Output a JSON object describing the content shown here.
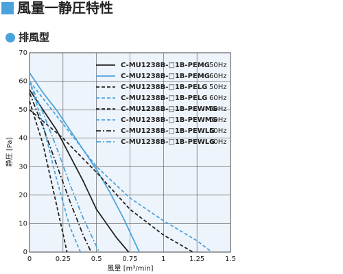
{
  "chart_data": {
    "type": "line",
    "title": "風量一静圧特性",
    "subtitle": "排風型",
    "x_label": "風量 [m³/min]",
    "y_label": "静圧 [Pa]",
    "xlim": [
      0,
      1.5
    ],
    "xticks": [
      0,
      0.25,
      0.5,
      0.75,
      1,
      1.25,
      1.5
    ],
    "ylim": [
      0,
      70
    ],
    "yticks": [
      0,
      10,
      20,
      30,
      40,
      50,
      60,
      70
    ],
    "grid": true,
    "series": [
      {
        "name": "C-MU1238B-□1B-PEMG",
        "frequency": "50Hz",
        "color": "#222222",
        "dash": "solid",
        "x": [
          0,
          0.1,
          0.2,
          0.3,
          0.4,
          0.5,
          0.65,
          0.74
        ],
        "values": [
          57,
          50,
          43,
          34,
          25,
          15,
          5,
          0
        ]
      },
      {
        "name": "C-MU1238B-□1B-PEMG",
        "frequency": "60Hz",
        "color": "#4ba3dc",
        "dash": "solid",
        "x": [
          0,
          0.1,
          0.2,
          0.3,
          0.4,
          0.5,
          0.6,
          0.7,
          0.82
        ],
        "values": [
          63,
          56,
          50,
          43,
          36,
          29,
          21,
          12,
          0
        ]
      },
      {
        "name": "C-MU1238B-□1B-PELG",
        "frequency": "50Hz",
        "color": "#222222",
        "dash": "dashed",
        "x": [
          0,
          0.1,
          0.2,
          0.28
        ],
        "values": [
          53,
          38,
          17,
          0
        ]
      },
      {
        "name": "C-MU1238B-□1B-PELG",
        "frequency": "60Hz",
        "color": "#4ba3dc",
        "dash": "dashed",
        "x": [
          0,
          0.1,
          0.2,
          0.3,
          0.38
        ],
        "values": [
          60,
          45,
          26,
          9,
          0
        ]
      },
      {
        "name": "C-MU1238B-□1B-PEWMG",
        "frequency": "50Hz",
        "color": "#222222",
        "dash": "dashed",
        "x": [
          0,
          0.25,
          0.5,
          0.75,
          1,
          1.22
        ],
        "values": [
          50,
          40,
          28,
          15,
          6,
          0
        ]
      },
      {
        "name": "C-MU1238B-□1B-PEWMG",
        "frequency": "60Hz",
        "color": "#4ba3dc",
        "dash": "dashed",
        "x": [
          0,
          0.25,
          0.5,
          0.75,
          1,
          1.25,
          1.36
        ],
        "values": [
          60,
          45,
          30,
          19,
          11,
          4,
          0
        ]
      },
      {
        "name": "C-MU1238B-□1B-PEWLG",
        "frequency": "50Hz",
        "color": "#222222",
        "dash": "dashdot",
        "x": [
          0,
          0.1,
          0.2,
          0.3,
          0.4,
          0.46
        ],
        "values": [
          56,
          44,
          31,
          18,
          6,
          0
        ]
      },
      {
        "name": "C-MU1238B-□1B-PEWLG",
        "frequency": "60Hz",
        "color": "#4ba3dc",
        "dash": "dashdot",
        "x": [
          0,
          0.1,
          0.2,
          0.3,
          0.4,
          0.52
        ],
        "values": [
          60,
          49,
          37,
          24,
          12,
          0
        ]
      }
    ]
  }
}
